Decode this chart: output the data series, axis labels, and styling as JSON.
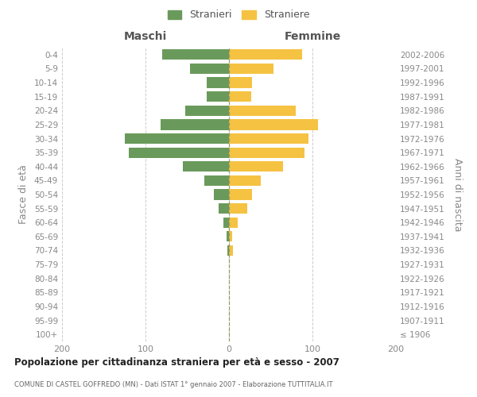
{
  "age_groups": [
    "100+",
    "95-99",
    "90-94",
    "85-89",
    "80-84",
    "75-79",
    "70-74",
    "65-69",
    "60-64",
    "55-59",
    "50-54",
    "45-49",
    "40-44",
    "35-39",
    "30-34",
    "25-29",
    "20-24",
    "15-19",
    "10-14",
    "5-9",
    "0-4"
  ],
  "birth_years": [
    "≤ 1906",
    "1907-1911",
    "1912-1916",
    "1917-1921",
    "1922-1926",
    "1927-1931",
    "1932-1936",
    "1937-1941",
    "1942-1946",
    "1947-1951",
    "1952-1956",
    "1957-1961",
    "1962-1966",
    "1967-1971",
    "1972-1976",
    "1977-1981",
    "1982-1986",
    "1987-1991",
    "1992-1996",
    "1997-2001",
    "2002-2006"
  ],
  "males": [
    0,
    0,
    0,
    0,
    0,
    0,
    2,
    3,
    7,
    12,
    18,
    30,
    55,
    120,
    125,
    82,
    52,
    27,
    27,
    47,
    80
  ],
  "females": [
    0,
    0,
    0,
    0,
    0,
    0,
    5,
    4,
    10,
    22,
    28,
    38,
    65,
    90,
    95,
    107,
    80,
    27,
    28,
    53,
    88
  ],
  "male_color": "#6a9a5b",
  "female_color": "#f5c242",
  "title": "Popolazione per cittadinanza straniera per età e sesso - 2007",
  "subtitle": "COMUNE DI CASTEL GOFFREDO (MN) - Dati ISTAT 1° gennaio 2007 - Elaborazione TUTTITALIA.IT",
  "xlabel_left": "Maschi",
  "xlabel_right": "Femmine",
  "ylabel_left": "Fasce di età",
  "ylabel_right": "Anni di nascita",
  "legend_stranieri": "Stranieri",
  "legend_straniere": "Straniere",
  "xlim": 200,
  "background_color": "#ffffff",
  "grid_color": "#cccccc",
  "text_color": "#888888",
  "label_color": "#555555",
  "title_color": "#222222",
  "bar_height": 0.75
}
